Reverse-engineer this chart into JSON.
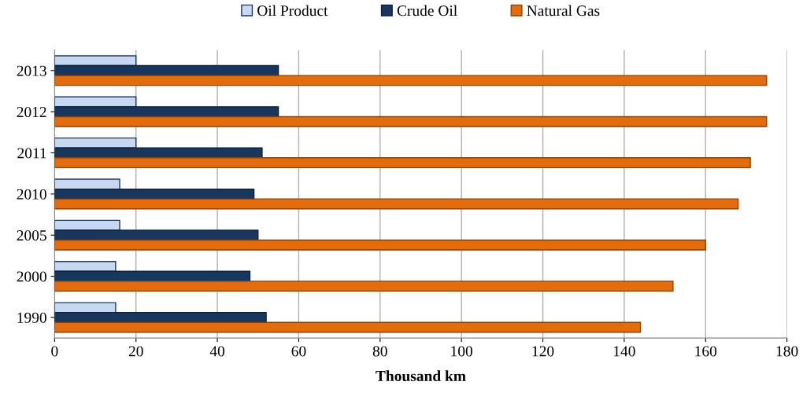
{
  "chart_data": {
    "type": "bar",
    "orientation": "horizontal",
    "xlabel": "Thousand km",
    "categories": [
      "2013",
      "2012",
      "2011",
      "2010",
      "2005",
      "2000",
      "1990"
    ],
    "series": [
      {
        "name": "Oil Product",
        "color": "#c6d9f1",
        "values": [
          20,
          20,
          20,
          16,
          16,
          15,
          15
        ]
      },
      {
        "name": "Crude Oil",
        "color": "#17375e",
        "values": [
          55,
          55,
          51,
          49,
          50,
          48,
          52
        ]
      },
      {
        "name": "Natural Gas",
        "color": "#e46c0a",
        "values": [
          175,
          175,
          171,
          168,
          160,
          152,
          144
        ]
      }
    ],
    "xlim": [
      0,
      180
    ],
    "xticks": [
      0,
      20,
      40,
      60,
      80,
      100,
      120,
      140,
      160,
      180
    ],
    "grid": "x",
    "legend": "top"
  }
}
